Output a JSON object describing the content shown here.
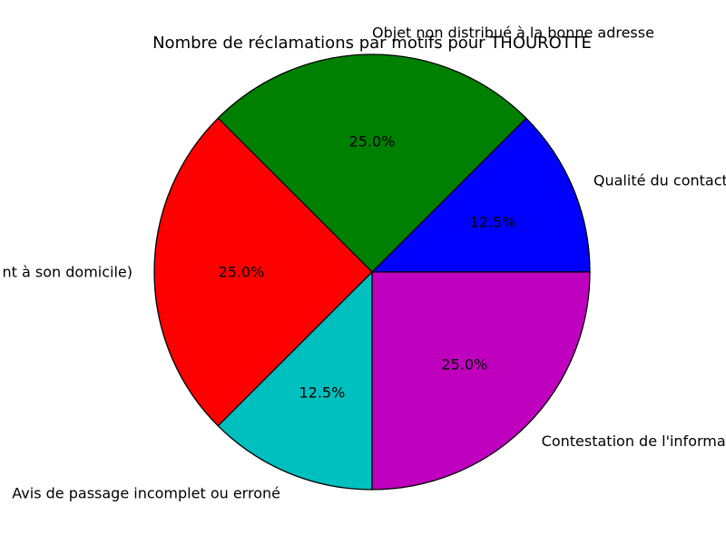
{
  "chart_data": {
    "type": "pie",
    "title": "Nombre de réclamations par motifs pour THOUROTTE",
    "slices": [
      {
        "label": "Qualité du contact",
        "percent_label": "12.5%",
        "value": 12.5,
        "color": "#0000ff"
      },
      {
        "label": "Objet non distribué à la bonne adresse",
        "percent_label": "25.0%",
        "value": 25.0,
        "color": "#008000"
      },
      {
        "label": "nt à son domicile)",
        "percent_label": "25.0%",
        "value": 25.0,
        "color": "#ff0000"
      },
      {
        "label": "Avis de passage incomplet ou erroné",
        "percent_label": "12.5%",
        "value": 12.5,
        "color": "#00bfbf"
      },
      {
        "label": "Contestation de l'informa",
        "percent_label": "25.0%",
        "value": 25.0,
        "color": "#bf00bf"
      }
    ],
    "start_angle_deg": 0,
    "direction": "counterclockwise",
    "legend": "none"
  }
}
